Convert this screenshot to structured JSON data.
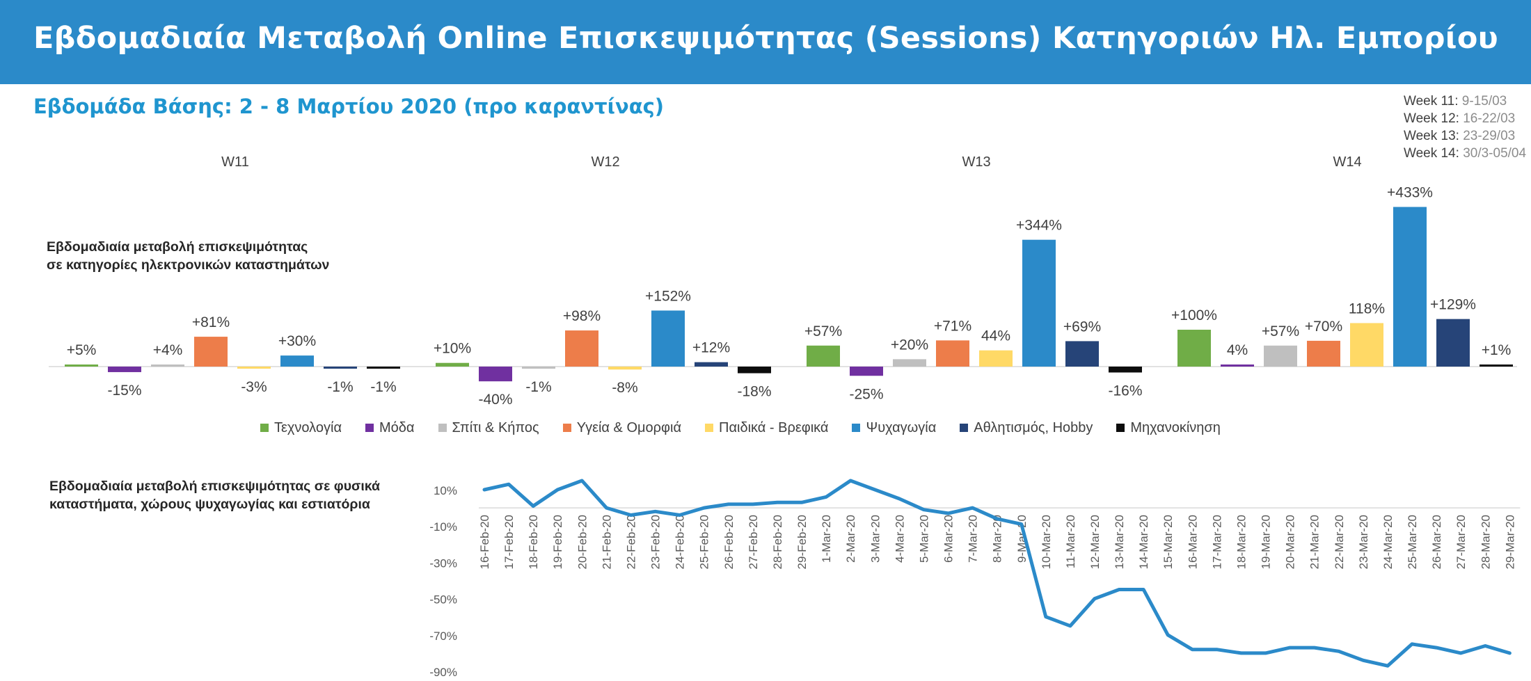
{
  "header": {
    "title": "Εβδομαδιαία Μεταβολή Online Επισκεψιμότητας (Sessions) Κατηγοριών Ηλ. Εμπορίου"
  },
  "subtitle": "Εβδομάδα Βάσης: 2 - 8 Μαρτίου 2020 (προ καραντίνας)",
  "week_legend": [
    {
      "label": "Week 11:",
      "dates": "9-15/03"
    },
    {
      "label": "Week 12:",
      "dates": "16-22/03"
    },
    {
      "label": "Week 13:",
      "dates": "23-29/03"
    },
    {
      "label": "Week 14:",
      "dates": "30/3-05/04"
    }
  ],
  "bars_label_line1": "Εβδομαδιαία μεταβολή επισκεψιμότητας",
  "bars_label_line2": "σε κατηγορίες ηλεκτρονικών καταστημάτων",
  "line_label_line1": "Εβδομαδιαία μεταβολή επισκεψιμότητας σε φυσικά",
  "line_label_line2": "καταστήματα, χώρους ψυχαγωγίας και εστιατόρια",
  "chart_data": [
    {
      "type": "bar",
      "groups": [
        "W11",
        "W12",
        "W13",
        "W14"
      ],
      "series": [
        {
          "name": "Τεχνολογία",
          "color": "#70ad47",
          "values": [
            5,
            10,
            57,
            100
          ],
          "labels": [
            "+5%",
            "+10%",
            "+57%",
            "+100%"
          ]
        },
        {
          "name": "Μόδα",
          "color": "#7030a0",
          "values": [
            -15,
            -40,
            -25,
            4
          ],
          "labels": [
            "-15%",
            "-40%",
            "-25%",
            "4%"
          ]
        },
        {
          "name": "Σπίτι & Κήπος",
          "color": "#bfbfbf",
          "values": [
            4,
            -1,
            20,
            57
          ],
          "labels": [
            "+4%",
            "-1%",
            "+20%",
            "+57%"
          ]
        },
        {
          "name": "Υγεία & Ομορφιά",
          "color": "#ed7d4a",
          "values": [
            81,
            98,
            71,
            70
          ],
          "labels": [
            "+81%",
            "+98%",
            "+71%",
            "+70%"
          ]
        },
        {
          "name": "Παιδικά - Βρεφικά",
          "color": "#ffd966",
          "values": [
            -3,
            -8,
            44,
            118
          ],
          "labels": [
            "-3%",
            "-8%",
            "44%",
            "118%"
          ]
        },
        {
          "name": "Ψυχαγωγία",
          "color": "#2b8ac9",
          "values": [
            30,
            152,
            344,
            433
          ],
          "labels": [
            "+30%",
            "+152%",
            "+344%",
            "+433%"
          ]
        },
        {
          "name": "Αθλητισμός, Hobby",
          "color": "#264478",
          "values": [
            -1,
            12,
            69,
            129
          ],
          "labels": [
            "-1%",
            "+12%",
            "+69%",
            "+129%"
          ]
        },
        {
          "name": "Μηχανοκίνηση",
          "color": "#0d0d0d",
          "values": [
            -1,
            -18,
            -16,
            1
          ],
          "labels": [
            "-1%",
            "-18%",
            "-16%",
            "+1%"
          ]
        }
      ],
      "legend": "bottom"
    },
    {
      "type": "line",
      "color": "#2b8ac9",
      "x": [
        "16-Feb-20",
        "17-Feb-20",
        "18-Feb-20",
        "19-Feb-20",
        "20-Feb-20",
        "21-Feb-20",
        "22-Feb-20",
        "23-Feb-20",
        "24-Feb-20",
        "25-Feb-20",
        "26-Feb-20",
        "27-Feb-20",
        "28-Feb-20",
        "29-Feb-20",
        "1-Mar-20",
        "2-Mar-20",
        "3-Mar-20",
        "4-Mar-20",
        "5-Mar-20",
        "6-Mar-20",
        "7-Mar-20",
        "8-Mar-20",
        "9-Mar-20",
        "10-Mar-20",
        "11-Mar-20",
        "12-Mar-20",
        "13-Mar-20",
        "14-Mar-20",
        "15-Mar-20",
        "16-Mar-20",
        "17-Mar-20",
        "18-Mar-20",
        "19-Mar-20",
        "20-Mar-20",
        "21-Mar-20",
        "22-Mar-20",
        "23-Mar-20",
        "24-Mar-20",
        "25-Mar-20",
        "26-Mar-20",
        "27-Mar-20",
        "28-Mar-20",
        "29-Mar-20"
      ],
      "y": [
        10,
        13,
        1,
        10,
        15,
        0,
        -4,
        -2,
        -4,
        0,
        2,
        2,
        3,
        3,
        6,
        15,
        10,
        5,
        -1,
        -3,
        0,
        -6,
        -9,
        -60,
        -65,
        -50,
        -45,
        -45,
        -70,
        -78,
        -78,
        -80,
        -80,
        -77,
        -77,
        -79,
        -84,
        -87,
        -75,
        -77,
        -80,
        -76,
        -80
      ],
      "y_ticks": [
        "10%",
        "-10%",
        "-30%",
        "-50%",
        "-70%",
        "-90%"
      ],
      "ylim": [
        -90,
        10
      ]
    }
  ]
}
